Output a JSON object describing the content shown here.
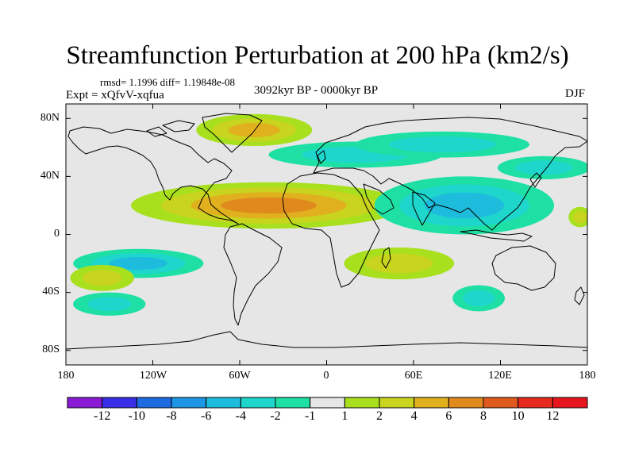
{
  "figure": {
    "title": "Streamfunction Perturbation at 200 hPa (km2/s)",
    "stats": "rmsd= 1.1996 diff= 1.19848e-08",
    "period": "3092kyr BP - 0000kyr BP",
    "experiment": "Expt = xQfvV-xqfua",
    "season": "DJF"
  },
  "axes": {
    "x_ticks": [
      "180",
      "120W",
      "60W",
      "0",
      "60E",
      "120E",
      "180"
    ],
    "y_ticks": [
      "80N",
      "40N",
      "0",
      "40S",
      "80S"
    ],
    "lon_range": [
      -180,
      180
    ],
    "lat_range": [
      -90,
      90
    ]
  },
  "colorbar": {
    "labels": [
      "-12",
      "-10",
      "-8",
      "-6",
      "-4",
      "-2",
      "-1",
      "1",
      "2",
      "4",
      "6",
      "8",
      "10",
      "12"
    ],
    "colors": [
      "#8a1ad6",
      "#3a2ee6",
      "#1e6ae0",
      "#1e96e6",
      "#1ebcdc",
      "#1ed6cc",
      "#1ee0a4",
      "#e6e6e6",
      "#a8e01e",
      "#c8d41e",
      "#e0b01e",
      "#e08a1e",
      "#e05a1e",
      "#e62a1e",
      "#e6161e"
    ]
  },
  "colors": {
    "background_zero": "#e6e6e6",
    "coastline": "#000000"
  },
  "anomalies": [
    {
      "label": "Greenland-Arctic positive",
      "lon": -50,
      "lat": 72,
      "value": 4,
      "rx": 40,
      "ry": 11
    },
    {
      "label": "N Atlantic-Europe negative",
      "lon": 20,
      "lat": 55,
      "value": -2,
      "rx": 60,
      "ry": 9
    },
    {
      "label": "Asia-N Pacific negative",
      "lon": 80,
      "lat": 62,
      "value": -2,
      "rx": 60,
      "ry": 9
    },
    {
      "label": "NW Pacific negative",
      "lon": 150,
      "lat": 46,
      "value": -2,
      "rx": 32,
      "ry": 8
    },
    {
      "label": "Tropical Atlantic positive",
      "lon": -40,
      "lat": 20,
      "value": 6,
      "rx": 95,
      "ry": 16
    },
    {
      "label": "Indian Ocean-Asia negative",
      "lon": 95,
      "lat": 20,
      "value": -4,
      "rx": 62,
      "ry": 20
    },
    {
      "label": "E Pacific negative",
      "lon": -130,
      "lat": -20,
      "value": -4,
      "rx": 45,
      "ry": 10
    },
    {
      "label": "S Indian Ocean positive",
      "lon": 50,
      "lat": -20,
      "value": 2,
      "rx": 38,
      "ry": 11
    },
    {
      "label": "S Pacific positive",
      "lon": -155,
      "lat": -30,
      "value": 2,
      "rx": 22,
      "ry": 9
    },
    {
      "label": "S Pacific negative",
      "lon": -150,
      "lat": -48,
      "value": -2,
      "rx": 25,
      "ry": 8
    },
    {
      "label": "S Indian Ocean negative",
      "lon": 105,
      "lat": -44,
      "value": -2,
      "rx": 18,
      "ry": 9
    },
    {
      "label": "Central Pacific positive",
      "lon": 175,
      "lat": 12,
      "value": 2,
      "rx": 8,
      "ry": 7
    }
  ]
}
